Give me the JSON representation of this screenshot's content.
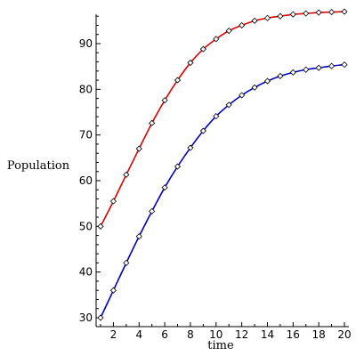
{
  "chart_data": {
    "type": "line",
    "title": "",
    "xlabel": "time",
    "ylabel": "Population",
    "xlim": [
      1,
      20
    ],
    "ylim": [
      30,
      97
    ],
    "x_ticks": [
      2,
      4,
      6,
      8,
      10,
      12,
      14,
      16,
      18,
      20
    ],
    "y_ticks": [
      30,
      40,
      50,
      60,
      70,
      80,
      90
    ],
    "grid": false,
    "legend": "none",
    "series": [
      {
        "color": "#e00000",
        "markers": "diamond",
        "x": [
          1,
          2,
          3,
          4,
          5,
          6,
          7,
          8,
          9,
          10,
          11,
          12,
          13,
          14,
          15,
          16,
          17,
          18,
          19,
          20
        ],
        "values": [
          50.0,
          55.5,
          61.3,
          67.0,
          72.6,
          77.6,
          82.0,
          85.8,
          88.8,
          91.0,
          92.8,
          94.0,
          95.0,
          95.6,
          96.0,
          96.4,
          96.6,
          96.8,
          96.9,
          97.0
        ]
      },
      {
        "color": "#0000cc",
        "markers": "diamond",
        "x": [
          1,
          2,
          3,
          4,
          5,
          6,
          7,
          8,
          9,
          10,
          11,
          12,
          13,
          14,
          15,
          16,
          17,
          18,
          19,
          20
        ],
        "values": [
          30.0,
          36.0,
          42.0,
          47.8,
          53.3,
          58.5,
          63.1,
          67.2,
          70.9,
          74.1,
          76.6,
          78.7,
          80.4,
          81.8,
          82.9,
          83.7,
          84.3,
          84.7,
          85.1,
          85.4
        ]
      }
    ]
  }
}
